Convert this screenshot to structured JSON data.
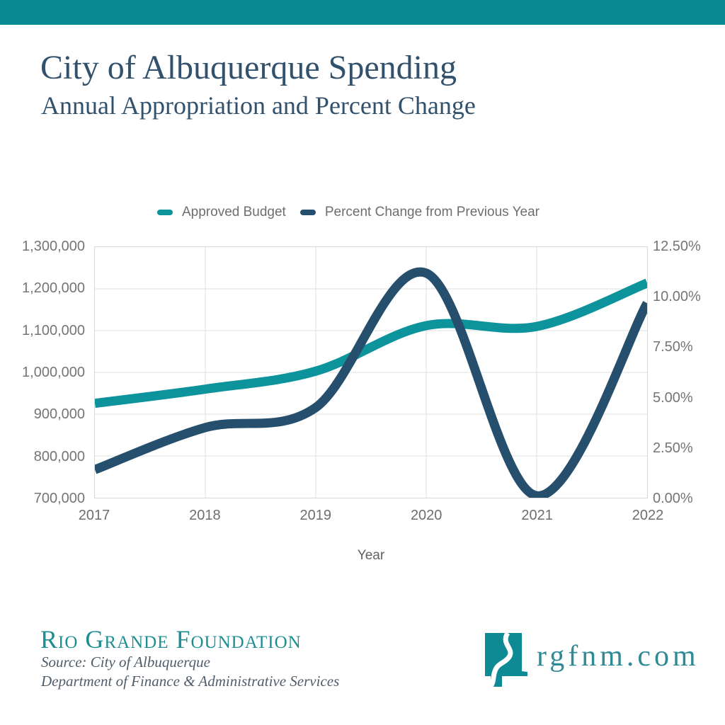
{
  "page": {
    "top_bar_color": "#0a8a94",
    "background": "#ffffff"
  },
  "header": {
    "title": "City of Albuquerque Spending",
    "subtitle": "Annual Appropriation and Percent Change",
    "title_color": "#32516c"
  },
  "legend": {
    "items": [
      {
        "label": "Approved Budget",
        "color": "#0d939b"
      },
      {
        "label": "Percent Change from Previous Year",
        "color": "#254f6d"
      }
    ]
  },
  "chart_data": {
    "type": "line",
    "x": [
      "2017",
      "2018",
      "2019",
      "2020",
      "2021",
      "2022"
    ],
    "xlabel": "Year",
    "series": [
      {
        "name": "Approved Budget",
        "axis": "left",
        "color": "#0d939b",
        "values": [
          926000,
          960000,
          1003000,
          1112000,
          1110000,
          1214000
        ]
      },
      {
        "name": "Percent Change from Previous Year",
        "axis": "right",
        "color": "#254f6d",
        "values": [
          1.4,
          3.5,
          4.5,
          11.2,
          0.1,
          9.7
        ]
      }
    ],
    "left_axis": {
      "min": 700000,
      "max": 1300000,
      "ticks": [
        "1,300,000",
        "1,200,000",
        "1,100,000",
        "1,000,000",
        "900,000",
        "800,000",
        "700,000"
      ]
    },
    "right_axis": {
      "min": 0,
      "max": 12.5,
      "ticks": [
        "12.50%",
        "10.00%",
        "7.50%",
        "5.00%",
        "2.50%",
        "0.00%"
      ]
    },
    "grid": true,
    "legend_position": "top",
    "gridline_color": "#dfdfdf",
    "line_width": 13
  },
  "footer": {
    "org": "Rio Grande Foundation",
    "org_color": "#1c8e91",
    "source_line1": "Source: City of Albuquerque",
    "source_line2": "Department of Finance & Administrative Services",
    "website": "rgfnm.com",
    "website_color": "#2e8b96",
    "logo_color": "#0d8a94"
  }
}
